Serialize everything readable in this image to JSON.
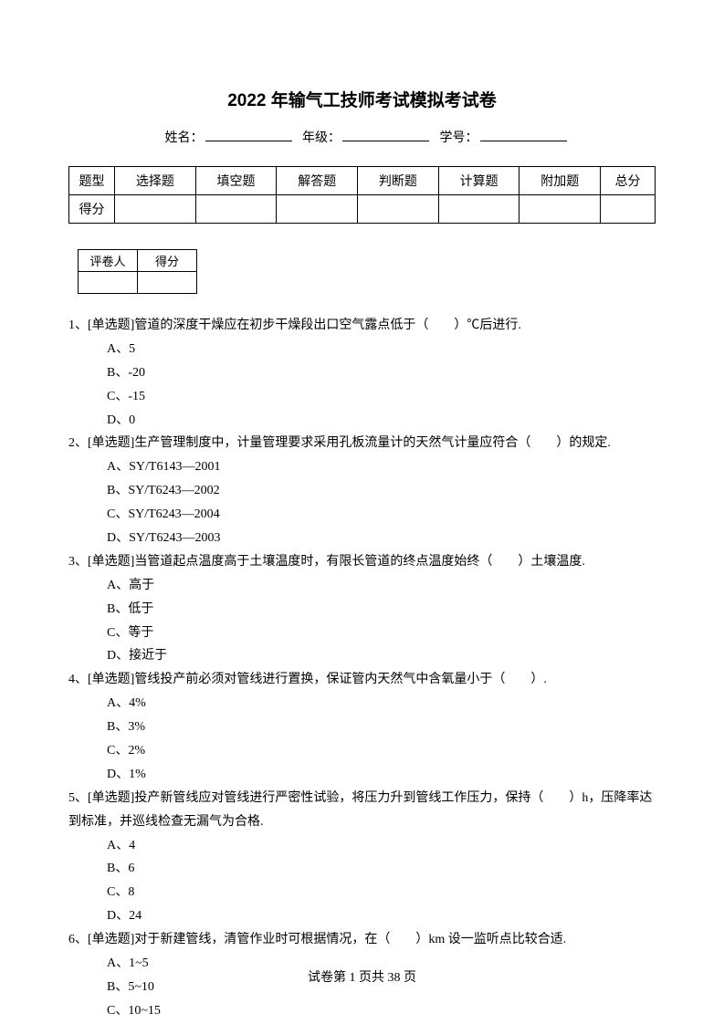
{
  "title": "2022 年输气工技师考试模拟考试卷",
  "info": {
    "name_label": "姓名：",
    "grade_label": "年级：",
    "id_label": "学号："
  },
  "score_table": {
    "row1_label": "题型",
    "row2_label": "得分",
    "headers": [
      "选择题",
      "填空题",
      "解答题",
      "判断题",
      "计算题",
      "附加题",
      "总分"
    ]
  },
  "grader_table": {
    "grader_label": "评卷人",
    "score_label": "得分"
  },
  "questions": [
    {
      "stem": "1、[单选题]管道的深度干燥应在初步干燥段出口空气露点低于（　　）℃后进行.",
      "options": [
        "A、5",
        "B、-20",
        "C、-15",
        "D、0"
      ]
    },
    {
      "stem": "2、[单选题]生产管理制度中，计量管理要求采用孔板流量计的天然气计量应符合（　　）的规定.",
      "options": [
        "A、SY/T6143—2001",
        "B、SY/T6243—2002",
        "C、SY/T6243—2004",
        "D、SY/T6243—2003"
      ]
    },
    {
      "stem": "3、[单选题]当管道起点温度高于土壤温度时，有限长管道的终点温度始终（　　）土壤温度.",
      "options": [
        "A、高于",
        "B、低于",
        "C、等于",
        "D、接近于"
      ]
    },
    {
      "stem": "4、[单选题]管线投产前必须对管线进行置换，保证管内天然气中含氧量小于（　　）.",
      "options": [
        "A、4%",
        "B、3%",
        "C、2%",
        "D、1%"
      ]
    },
    {
      "stem": "5、[单选题]投产新管线应对管线进行严密性试验，将压力升到管线工作压力，保持（　　）h，压降率达到标准，并巡线检查无漏气为合格.",
      "options": [
        "A、4",
        "B、6",
        "C、8",
        "D、24"
      ]
    },
    {
      "stem": "6、[单选题]对于新建管线，清管作业时可根据情况，在（　　）km 设一监听点比较合适.",
      "options": [
        "A、1~5",
        "B、5~10",
        "C、10~15"
      ]
    }
  ],
  "footer": "试卷第 1 页共 38 页"
}
